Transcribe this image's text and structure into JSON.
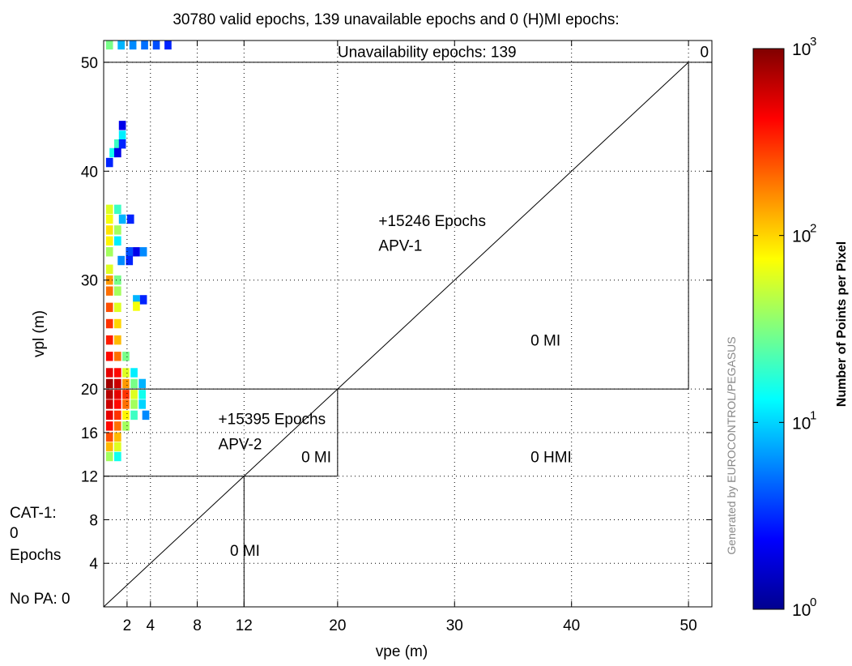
{
  "chart_data": {
    "type": "heatmap",
    "title": "30780 valid epochs, 139 unavailable epochs and 0 (H)MI epochs:",
    "xlabel": "vpe (m)",
    "ylabel": "vpl (m)",
    "xlim": [
      0,
      52
    ],
    "ylim": [
      0,
      52
    ],
    "x_ticks": [
      2,
      4,
      8,
      12,
      20,
      30,
      40,
      50
    ],
    "y_ticks": [
      4,
      8,
      12,
      16,
      20,
      30,
      40,
      50
    ],
    "grid": true,
    "colorbar": {
      "label": "Number of Points per Pixel",
      "scale": "log",
      "range": [
        1,
        1000
      ],
      "ticks": [
        {
          "base": "10",
          "exp": "0",
          "value": 1
        },
        {
          "base": "10",
          "exp": "1",
          "value": 10
        },
        {
          "base": "10",
          "exp": "2",
          "value": 100
        },
        {
          "base": "10",
          "exp": "3",
          "value": 1000
        }
      ],
      "colors": [
        "#00008f",
        "#0000ff",
        "#0080ff",
        "#00ffff",
        "#80ff80",
        "#ffff00",
        "#ff8000",
        "#ff0000",
        "#800000"
      ]
    },
    "region_lines": [
      [
        [
          0,
          50
        ],
        [
          52,
          50
        ]
      ],
      [
        [
          50,
          50
        ],
        [
          50,
          20
        ]
      ],
      [
        [
          0,
          20
        ],
        [
          50,
          20
        ]
      ],
      [
        [
          20,
          20
        ],
        [
          20,
          12
        ]
      ],
      [
        [
          0,
          12
        ],
        [
          20,
          12
        ]
      ],
      [
        [
          12,
          12
        ],
        [
          12,
          0
        ]
      ],
      [
        [
          0,
          0
        ],
        [
          50,
          50
        ]
      ]
    ],
    "annotations": [
      {
        "id": "unavailability",
        "text": "Unavailability epochs: 139",
        "x": 20,
        "y": 51
      },
      {
        "id": "corner-zero",
        "text": "0",
        "x": 51,
        "y": 51
      },
      {
        "id": "apv1-count",
        "text": "+15246 Epochs",
        "x": 23.5,
        "y": 35.5
      },
      {
        "id": "apv1-label",
        "text": "APV-1",
        "x": 23.5,
        "y": 33.2
      },
      {
        "id": "mi-upper",
        "text": "0 MI",
        "x": 36.5,
        "y": 24.5
      },
      {
        "id": "apv2-count",
        "text": "+15395 Epochs",
        "x": 9.8,
        "y": 17.3
      },
      {
        "id": "apv2-label",
        "text": "APV-2",
        "x": 9.8,
        "y": 15.0
      },
      {
        "id": "mi-middle",
        "text": "0 MI",
        "x": 16.9,
        "y": 13.8
      },
      {
        "id": "hmi",
        "text": "0 HMI",
        "x": 36.5,
        "y": 13.8
      },
      {
        "id": "mi-lower",
        "text": "0 MI",
        "x": 10.8,
        "y": 5.2
      }
    ],
    "side_labels": {
      "cat1_line1": "CAT-1:",
      "cat1_line2": "0",
      "cat1_line3": "Epochs",
      "no_pa": "No PA: 0"
    },
    "watermark": "Generated by EUROCONTROL/PEGASUS",
    "cells": [
      {
        "x": 0.5,
        "y": 51.6,
        "count": 30
      },
      {
        "x": 1.5,
        "y": 51.6,
        "count": 8
      },
      {
        "x": 2.5,
        "y": 51.6,
        "count": 6
      },
      {
        "x": 3.5,
        "y": 51.6,
        "count": 5
      },
      {
        "x": 4.5,
        "y": 51.6,
        "count": 4
      },
      {
        "x": 5.5,
        "y": 51.6,
        "count": 3
      },
      {
        "x": 1.6,
        "y": 44.2,
        "count": 2
      },
      {
        "x": 1.6,
        "y": 43.3,
        "count": 12
      },
      {
        "x": 1.2,
        "y": 42.5,
        "count": 20
      },
      {
        "x": 1.6,
        "y": 42.5,
        "count": 3
      },
      {
        "x": 0.8,
        "y": 41.7,
        "count": 15
      },
      {
        "x": 1.2,
        "y": 41.7,
        "count": 2
      },
      {
        "x": 0.5,
        "y": 40.8,
        "count": 3
      },
      {
        "x": 0.5,
        "y": 36.5,
        "count": 60
      },
      {
        "x": 1.2,
        "y": 36.5,
        "count": 20
      },
      {
        "x": 0.5,
        "y": 35.6,
        "count": 70
      },
      {
        "x": 1.6,
        "y": 35.6,
        "count": 8
      },
      {
        "x": 2.3,
        "y": 35.6,
        "count": 3
      },
      {
        "x": 0.5,
        "y": 34.6,
        "count": 90
      },
      {
        "x": 1.2,
        "y": 34.6,
        "count": 40
      },
      {
        "x": 0.5,
        "y": 33.6,
        "count": 80
      },
      {
        "x": 1.2,
        "y": 33.6,
        "count": 12
      },
      {
        "x": 0.5,
        "y": 32.6,
        "count": 40
      },
      {
        "x": 2.2,
        "y": 32.6,
        "count": 4
      },
      {
        "x": 2.8,
        "y": 32.6,
        "count": 2
      },
      {
        "x": 3.4,
        "y": 32.6,
        "count": 6
      },
      {
        "x": 1.5,
        "y": 31.8,
        "count": 6
      },
      {
        "x": 2.2,
        "y": 31.8,
        "count": 3
      },
      {
        "x": 0.5,
        "y": 31.0,
        "count": 60
      },
      {
        "x": 0.5,
        "y": 30.0,
        "count": 150
      },
      {
        "x": 1.2,
        "y": 30.0,
        "count": 30
      },
      {
        "x": 0.5,
        "y": 29.0,
        "count": 200
      },
      {
        "x": 1.2,
        "y": 29.0,
        "count": 40
      },
      {
        "x": 2.8,
        "y": 28.2,
        "count": 8
      },
      {
        "x": 3.4,
        "y": 28.2,
        "count": 3
      },
      {
        "x": 2.8,
        "y": 27.6,
        "count": 70
      },
      {
        "x": 0.5,
        "y": 27.5,
        "count": 250
      },
      {
        "x": 1.2,
        "y": 27.5,
        "count": 60
      },
      {
        "x": 0.5,
        "y": 26.0,
        "count": 300
      },
      {
        "x": 1.2,
        "y": 26.0,
        "count": 100
      },
      {
        "x": 0.5,
        "y": 24.5,
        "count": 350
      },
      {
        "x": 1.2,
        "y": 24.5,
        "count": 120
      },
      {
        "x": 0.5,
        "y": 23.0,
        "count": 400
      },
      {
        "x": 1.2,
        "y": 23.0,
        "count": 200
      },
      {
        "x": 1.9,
        "y": 23.0,
        "count": 30
      },
      {
        "x": 0.5,
        "y": 21.5,
        "count": 500
      },
      {
        "x": 1.2,
        "y": 21.5,
        "count": 400
      },
      {
        "x": 1.9,
        "y": 21.5,
        "count": 60
      },
      {
        "x": 2.6,
        "y": 21.5,
        "count": 12
      },
      {
        "x": 0.5,
        "y": 20.5,
        "count": 800
      },
      {
        "x": 1.2,
        "y": 20.5,
        "count": 600
      },
      {
        "x": 1.9,
        "y": 20.5,
        "count": 150
      },
      {
        "x": 2.6,
        "y": 20.5,
        "count": 30
      },
      {
        "x": 3.3,
        "y": 20.5,
        "count": 8
      },
      {
        "x": 0.5,
        "y": 19.5,
        "count": 700
      },
      {
        "x": 1.2,
        "y": 19.5,
        "count": 500
      },
      {
        "x": 1.9,
        "y": 19.5,
        "count": 300
      },
      {
        "x": 2.6,
        "y": 19.5,
        "count": 60
      },
      {
        "x": 3.3,
        "y": 19.5,
        "count": 15
      },
      {
        "x": 0.5,
        "y": 18.6,
        "count": 600
      },
      {
        "x": 1.2,
        "y": 18.6,
        "count": 400
      },
      {
        "x": 1.9,
        "y": 18.6,
        "count": 200
      },
      {
        "x": 2.6,
        "y": 18.6,
        "count": 40
      },
      {
        "x": 3.3,
        "y": 18.6,
        "count": 10
      },
      {
        "x": 0.5,
        "y": 17.6,
        "count": 500
      },
      {
        "x": 1.2,
        "y": 17.6,
        "count": 300
      },
      {
        "x": 1.9,
        "y": 17.6,
        "count": 80
      },
      {
        "x": 2.6,
        "y": 17.6,
        "count": 20
      },
      {
        "x": 3.6,
        "y": 17.6,
        "count": 6
      },
      {
        "x": 0.5,
        "y": 16.6,
        "count": 400
      },
      {
        "x": 1.2,
        "y": 16.6,
        "count": 200
      },
      {
        "x": 1.9,
        "y": 16.6,
        "count": 40
      },
      {
        "x": 0.5,
        "y": 15.6,
        "count": 250
      },
      {
        "x": 1.2,
        "y": 15.6,
        "count": 120
      },
      {
        "x": 0.5,
        "y": 14.7,
        "count": 120
      },
      {
        "x": 1.2,
        "y": 14.7,
        "count": 60
      },
      {
        "x": 0.5,
        "y": 13.8,
        "count": 40
      },
      {
        "x": 1.2,
        "y": 13.8,
        "count": 15
      }
    ]
  }
}
